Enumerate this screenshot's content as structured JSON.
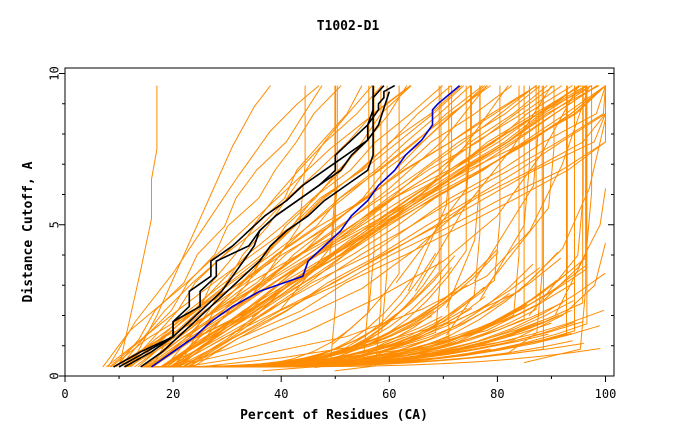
{
  "chart_data": {
    "type": "line",
    "title": "T1002-D1",
    "xlabel": "Percent of Residues (CA)",
    "ylabel": "Distance Cutoff, A",
    "xlim": [
      0,
      100
    ],
    "ylim": [
      0,
      10
    ],
    "x_ticks": [
      "0",
      "20",
      "40",
      "60",
      "80",
      "100"
    ],
    "y_ticks": [
      "0",
      "5",
      "10"
    ],
    "grid": false,
    "legend": "none",
    "colors": {
      "orange": "#ff8c00",
      "black": "#000000",
      "blue": "#0000d0"
    },
    "series": [
      {
        "color": "black",
        "x": [
          9.0,
          14.0,
          20.0,
          20.0,
          25.0,
          25.0,
          28.0,
          28.0,
          34.0,
          36.0,
          39.0,
          43.0,
          47.0,
          50.0,
          50.0,
          53.0,
          56.0,
          58.0,
          58.0,
          59.0,
          59.0,
          61.0
        ],
        "y": [
          0.3,
          0.8,
          1.3,
          1.8,
          2.3,
          2.8,
          3.3,
          3.8,
          4.3,
          4.8,
          5.3,
          5.8,
          6.3,
          6.8,
          7.3,
          7.8,
          8.3,
          8.8,
          9.0,
          9.2,
          9.4,
          9.6
        ]
      },
      {
        "color": "black",
        "x": [
          10.0,
          15.0,
          20.0,
          20.0,
          23.0,
          23.0,
          27.0,
          27.0,
          31.0,
          34.0,
          37.0,
          41.0,
          44.0,
          48.0,
          52.0,
          56.0,
          56.0,
          57.0,
          57.0,
          59.0
        ],
        "y": [
          0.3,
          0.8,
          1.3,
          1.8,
          2.3,
          2.8,
          3.3,
          3.8,
          4.3,
          4.8,
          5.3,
          5.8,
          6.3,
          6.8,
          7.3,
          7.8,
          8.3,
          8.8,
          9.2,
          9.6
        ]
      },
      {
        "color": "black",
        "x": [
          11.0,
          16.0,
          20.0,
          23.0,
          26.0,
          29.0,
          31.0,
          33.0,
          35.0,
          36.0,
          39.0,
          43.0,
          47.0,
          51.0,
          53.0,
          56.0,
          58.0,
          60.0
        ],
        "y": [
          0.3,
          0.8,
          1.3,
          1.8,
          2.3,
          2.8,
          3.3,
          3.8,
          4.3,
          4.8,
          5.3,
          5.8,
          6.3,
          6.8,
          7.3,
          7.8,
          8.3,
          9.4
        ]
      },
      {
        "color": "black",
        "x": [
          14.0,
          18.0,
          21.0,
          24.0,
          27.0,
          30.0,
          33.0,
          36.0,
          38.0,
          41.0,
          45.0,
          48.0,
          52.0,
          56.0,
          57.0,
          57.0,
          57.0,
          57.0
        ],
        "y": [
          0.3,
          0.8,
          1.3,
          1.8,
          2.3,
          2.8,
          3.3,
          3.8,
          4.3,
          4.8,
          5.3,
          5.8,
          6.3,
          6.8,
          7.3,
          7.8,
          8.3,
          9.6
        ]
      },
      {
        "color": "blue",
        "x": [
          16.0,
          20.0,
          24.0,
          27.0,
          31.0,
          36.0,
          44.0,
          45.0,
          48.0,
          51.0,
          53.0,
          56.0,
          58.0,
          61.0,
          63.0,
          66.0,
          68.0,
          68.0,
          69.0,
          71.0,
          73.0
        ],
        "y": [
          0.3,
          0.8,
          1.3,
          1.8,
          2.3,
          2.8,
          3.3,
          3.8,
          4.3,
          4.8,
          5.3,
          5.8,
          6.3,
          6.8,
          7.3,
          7.8,
          8.3,
          8.8,
          9.0,
          9.3,
          9.6
        ]
      }
    ],
    "orange_series_note": "approximately 150 orange model curves",
    "orange_series": [
      {
        "x": [
          7.0,
          12.0,
          22.0,
          31.0,
          40.0,
          49.0,
          56.0,
          64.0
        ],
        "y": [
          0.3,
          1.5,
          3.0,
          4.5,
          6.0,
          7.5,
          8.5,
          9.6
        ]
      },
      {
        "x": [
          8.0,
          13.0,
          20.0,
          26.0,
          32.0,
          38.0,
          43.0,
          47.0
        ],
        "y": [
          0.3,
          1.8,
          3.4,
          5.0,
          6.6,
          8.1,
          9.0,
          9.6
        ]
      },
      {
        "x": [
          10.0,
          14.0,
          16.0,
          16.0,
          17.0,
          17.0
        ],
        "y": [
          0.3,
          3.5,
          5.2,
          6.5,
          7.5,
          9.6
        ]
      },
      {
        "x": [
          12.0,
          17.0,
          22.0,
          27.0,
          31.0,
          35.0,
          38.0
        ],
        "y": [
          0.3,
          2.0,
          4.0,
          6.0,
          7.6,
          8.9,
          9.6
        ]
      },
      {
        "x": [
          15.0,
          22.0,
          31.0,
          40.0,
          50.0,
          60.0,
          70.0,
          78.0
        ],
        "y": [
          0.3,
          1.2,
          2.4,
          3.6,
          4.8,
          6.2,
          7.8,
          9.6
        ]
      },
      {
        "x": [
          18.0,
          26.0,
          36.0,
          46.0,
          56.0,
          66.0,
          74.0,
          82.0
        ],
        "y": [
          0.3,
          1.0,
          2.0,
          3.2,
          4.6,
          6.0,
          7.6,
          9.6
        ]
      },
      {
        "x": [
          20.0,
          30.0,
          42.0,
          55.0,
          65.0,
          75.0,
          83.0,
          90.0
        ],
        "y": [
          0.3,
          0.9,
          1.8,
          2.9,
          4.2,
          5.8,
          7.6,
          9.6
        ]
      },
      {
        "x": [
          20.0,
          32.0,
          45.0,
          58.0,
          70.0,
          80.0,
          88.0,
          95.0
        ],
        "y": [
          0.3,
          0.8,
          1.5,
          2.6,
          3.8,
          5.3,
          7.3,
          9.6
        ]
      },
      {
        "x": [
          22.0,
          36.0,
          52.0,
          66.0,
          78.0,
          86.0,
          92.0,
          97.0
        ],
        "y": [
          0.3,
          0.7,
          1.3,
          2.2,
          3.3,
          4.8,
          7.0,
          9.6
        ]
      },
      {
        "x": [
          25.0,
          40.0,
          58.0,
          72.0,
          84.0,
          92.0,
          97.0,
          100.0
        ],
        "y": [
          0.3,
          0.6,
          1.1,
          1.8,
          2.8,
          4.2,
          6.2,
          8.5
        ]
      },
      {
        "x": [
          28.0,
          46.0,
          64.0,
          78.0,
          88.0,
          95.0,
          99.0,
          100.0
        ],
        "y": [
          0.3,
          0.5,
          0.9,
          1.5,
          2.4,
          3.6,
          5.0,
          6.2
        ]
      },
      {
        "x": [
          30.0,
          52.0,
          70.0,
          83.0,
          92.0,
          98.0,
          100.0
        ],
        "y": [
          0.3,
          0.5,
          0.8,
          1.2,
          2.0,
          3.0,
          4.4
        ]
      }
    ]
  }
}
